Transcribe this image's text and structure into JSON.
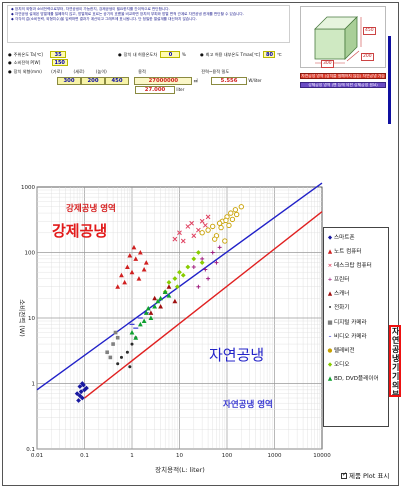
{
  "info": {
    "lines": [
      "◆ 장치의 외형과 소비전력으로부터, 자연공냉이 가능한지, 강제공냉이 필요한지를 간이적으로 판단합니다.",
      "◆ 자연공냉 설계된 방열체를 밀폐하지 않고, 방열체로 흐르는 공기의 흐름을 비교하면 장치의 부피와 방열 면적 관계로 자연공냉 한계를 판단할 수 있습니다.",
      "◆ 각각의 값(소비전력, 외형치수)을 입력하면 결과가 계산되고 그래프에 표시됩니다. 단 정밀한 열설계를 대신하지 않습니다."
    ]
  },
  "inputs": {
    "ambient_label": "주위온도 Ta[℃]",
    "ambient_value": "35",
    "power_label": "소비전력 P[W]",
    "power_value": "150",
    "internal_label": "장치 내 허용온도차",
    "internal_value": "0",
    "internal_unit": "%",
    "cooling_label": "최고 허용 내부온도 Tmax[℃]",
    "cooling_value": "80",
    "cooling_unit": "℃",
    "size_label": "장치 외형(mm)",
    "size_headers": [
      "(가로)",
      "(세로)",
      "(높이)"
    ],
    "size_values": [
      "300",
      "200",
      "450"
    ],
    "volume_label": "용적",
    "volume_value": "27000000",
    "volume_unit": "㎣",
    "volume_liter": "27.000",
    "liter_unit": "liter",
    "density_label": "전력~용적 밀도",
    "density_value": "5.556",
    "density_unit": "W/liter"
  },
  "cube": {
    "width_label": "300",
    "height_label": "450",
    "depth_label": "200"
  },
  "bars": {
    "natural": "자연공냉 영역 (장치를 밀폐하지 않음) 자연공냉 가능",
    "forced": "강제공냉 영역 (팬 등에 의한 강제공냉 필요)"
  },
  "chart_data": {
    "type": "scatter",
    "title": "",
    "xlabel": "장치용적(L: liter)",
    "ylabel": "소비전력 (W)",
    "xscale": "log",
    "yscale": "log",
    "xlim": [
      0.01,
      10000
    ],
    "ylim": [
      0.1,
      1000
    ],
    "x_ticks": [
      "0.01",
      "0.1",
      "1",
      "10",
      "100",
      "1000",
      "10000"
    ],
    "y_ticks": [
      "0.1",
      "1",
      "10",
      "100",
      "1000"
    ],
    "grid": true,
    "region_labels": {
      "forced_small": "강제공냉 영역",
      "forced_big": "강제공냉",
      "natural_big": "자연공냉",
      "natural_small": "자연공냉 영역"
    },
    "boundary_lines": [
      {
        "name": "blue",
        "color": "#2020c8",
        "from": [
          0.01,
          0.8
        ],
        "to": [
          10000,
          1150
        ]
      },
      {
        "name": "red",
        "color": "#e02020",
        "from": [
          0.1,
          0.6
        ],
        "to": [
          10000,
          420
        ]
      }
    ],
    "series": [
      {
        "name": "스마트폰",
        "marker": "diamond",
        "color": "#1818a0",
        "points": [
          [
            0.07,
            0.7
          ],
          [
            0.08,
            0.9
          ],
          [
            0.09,
            0.6
          ],
          [
            0.1,
            0.8
          ],
          [
            0.085,
            0.75
          ],
          [
            0.095,
            0.95
          ],
          [
            0.075,
            0.55
          ],
          [
            0.11,
            0.85
          ],
          [
            0.09,
            1.0
          ],
          [
            0.08,
            0.65
          ]
        ]
      },
      {
        "name": "노트 컴퓨터",
        "marker": "triangle",
        "color": "#d02020",
        "points": [
          [
            0.6,
            45
          ],
          [
            0.8,
            60
          ],
          [
            1.0,
            50
          ],
          [
            1.2,
            80
          ],
          [
            0.7,
            35
          ],
          [
            1.5,
            100
          ],
          [
            2.0,
            70
          ],
          [
            0.5,
            30
          ],
          [
            0.9,
            90
          ],
          [
            1.1,
            120
          ],
          [
            1.8,
            55
          ],
          [
            1.4,
            40
          ]
        ]
      },
      {
        "name": "데스크탑 컴퓨터",
        "marker": "x",
        "color": "#e04060",
        "points": [
          [
            10,
            200
          ],
          [
            15,
            250
          ],
          [
            20,
            180
          ],
          [
            30,
            300
          ],
          [
            12,
            150
          ],
          [
            25,
            220
          ],
          [
            40,
            350
          ],
          [
            18,
            280
          ],
          [
            8,
            160
          ],
          [
            35,
            260
          ]
        ]
      },
      {
        "name": "프린터",
        "marker": "plus",
        "color": "#a02080",
        "points": [
          [
            20,
            60
          ],
          [
            30,
            80
          ],
          [
            50,
            100
          ],
          [
            40,
            40
          ],
          [
            60,
            70
          ],
          [
            25,
            30
          ],
          [
            70,
            120
          ],
          [
            35,
            55
          ]
        ]
      },
      {
        "name": "스캐너",
        "marker": "triangle",
        "color": "#a01010",
        "points": [
          [
            3,
            20
          ],
          [
            5,
            25
          ],
          [
            4,
            15
          ],
          [
            6,
            30
          ],
          [
            8,
            18
          ],
          [
            2.5,
            12
          ]
        ]
      },
      {
        "name": "전화기",
        "marker": "dot",
        "color": "#2a2a2a",
        "points": [
          [
            0.5,
            2
          ],
          [
            0.8,
            3
          ],
          [
            1,
            4
          ],
          [
            0.6,
            2.5
          ],
          [
            1.2,
            5
          ],
          [
            0.9,
            1.8
          ]
        ]
      },
      {
        "name": "디지털 카메라",
        "marker": "square",
        "color": "#808080",
        "points": [
          [
            0.3,
            3
          ],
          [
            0.4,
            4
          ],
          [
            0.5,
            5
          ],
          [
            0.35,
            2.5
          ],
          [
            0.45,
            6
          ]
        ]
      },
      {
        "name": "비디오 카메라",
        "marker": "dash",
        "color": "#3b3bd0",
        "points": [
          [
            1,
            8
          ],
          [
            1.5,
            10
          ],
          [
            2,
            12
          ],
          [
            1.2,
            7
          ]
        ]
      },
      {
        "name": "텔레비전",
        "marker": "circle",
        "color": "#c8a000",
        "points": [
          [
            30,
            200
          ],
          [
            50,
            250
          ],
          [
            80,
            300
          ],
          [
            100,
            350
          ],
          [
            60,
            180
          ],
          [
            120,
            400
          ],
          [
            150,
            450
          ],
          [
            40,
            220
          ],
          [
            70,
            280
          ],
          [
            90,
            150
          ],
          [
            110,
            260
          ],
          [
            130,
            320
          ],
          [
            160,
            380
          ],
          [
            200,
            500
          ],
          [
            55,
            160
          ],
          [
            75,
            240
          ],
          [
            95,
            310
          ]
        ]
      },
      {
        "name": "오디오",
        "marker": "diamond",
        "color": "#88cc00",
        "points": [
          [
            5,
            25
          ],
          [
            8,
            40
          ],
          [
            10,
            50
          ],
          [
            15,
            60
          ],
          [
            20,
            80
          ],
          [
            6,
            35
          ],
          [
            12,
            45
          ],
          [
            25,
            100
          ],
          [
            30,
            70
          ],
          [
            9,
            30
          ]
        ]
      },
      {
        "name": "BD, DVD플레이어",
        "marker": "triangle",
        "color": "#10a030",
        "points": [
          [
            1,
            6
          ],
          [
            1.5,
            8
          ],
          [
            2,
            12
          ],
          [
            3,
            15
          ],
          [
            4,
            20
          ],
          [
            1.2,
            5
          ],
          [
            2.5,
            10
          ],
          [
            3.5,
            18
          ],
          [
            5,
            25
          ],
          [
            6,
            22
          ],
          [
            2.2,
            14
          ],
          [
            1.8,
            9
          ]
        ]
      }
    ]
  },
  "side_note": "자연공냉 기기의 분포",
  "footer": {
    "checkbox_label": "제품 Plot 표시"
  }
}
